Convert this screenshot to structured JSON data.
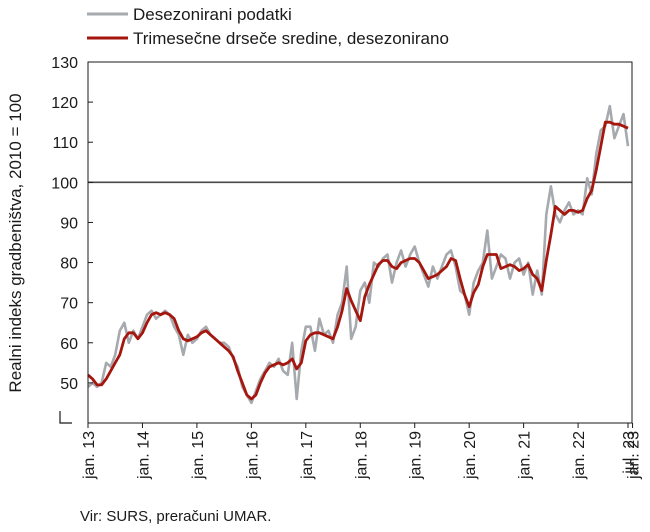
{
  "chart_data": {
    "type": "line",
    "ylabel": "Realni indeks gradbeništva, 2010 = 100",
    "ylim": [
      40,
      130
    ],
    "yticks": [
      50,
      60,
      70,
      80,
      90,
      100,
      110,
      120,
      130
    ],
    "reference_line": 100,
    "x_start": "2013-01",
    "x_end": "2023-07",
    "xticks": [
      "jan. 13",
      "jan. 14",
      "jan. 15",
      "jan. 16",
      "jan. 17",
      "jan. 18",
      "jan. 19",
      "jan. 20",
      "jan. 21",
      "jan. 22",
      "jan. 23",
      "jul. 23"
    ],
    "legend_position": "top-left",
    "series": [
      {
        "name": "Desezonirani podatki",
        "color": "#a6a9ad",
        "values": [
          49,
          50,
          49,
          50,
          55,
          54,
          57,
          63,
          65,
          60,
          63,
          61,
          64,
          67,
          68,
          66,
          67,
          68,
          67,
          64,
          62,
          57,
          62,
          60,
          61,
          63,
          64,
          62,
          61,
          60,
          60,
          59,
          56,
          54,
          49,
          47,
          45,
          48,
          51,
          53,
          55,
          54,
          56,
          53,
          52,
          60,
          46,
          58,
          64,
          64,
          58,
          66,
          62,
          63,
          60,
          67,
          70,
          79,
          61,
          64,
          73,
          75,
          70,
          80,
          79,
          81,
          82,
          75,
          80,
          83,
          79,
          82,
          84,
          80,
          77,
          74,
          79,
          76,
          79,
          82,
          83,
          79,
          73,
          72,
          67,
          75,
          78,
          80,
          88,
          76,
          79,
          82,
          81,
          76,
          80,
          81,
          77,
          80,
          72,
          78,
          72,
          92,
          99,
          92,
          90,
          93,
          95,
          92,
          93,
          92,
          101,
          97,
          107,
          113,
          114,
          119,
          111,
          114,
          117,
          109
        ]
      },
      {
        "name": "Trimesečne drseče sredine, desezonirano",
        "color": "#a5160e",
        "values": [
          52,
          51,
          49.5,
          49.5,
          51,
          53,
          55,
          57,
          61,
          62.5,
          62.5,
          61,
          62.5,
          65,
          67,
          67.5,
          67,
          67.5,
          67,
          66,
          63,
          61,
          60.5,
          61,
          61.5,
          62.5,
          63,
          62,
          61,
          60,
          59,
          58,
          56.5,
          53,
          50,
          47,
          46,
          47,
          50,
          52.5,
          54,
          54.5,
          55,
          54.5,
          55,
          56,
          53.5,
          55,
          60.5,
          62,
          62.5,
          62.5,
          62,
          61.5,
          61,
          64,
          68,
          73.5,
          70.5,
          68,
          65.5,
          71.5,
          74.5,
          77,
          79.5,
          80.5,
          80.5,
          79,
          78.5,
          80,
          80.5,
          81,
          81,
          80,
          78,
          76,
          76.5,
          77,
          78,
          79,
          81,
          80.5,
          76,
          72,
          69,
          72.5,
          74.5,
          79,
          82,
          82,
          82,
          78.5,
          79,
          79.5,
          79,
          78,
          78.5,
          79.5,
          77,
          76,
          73,
          80.5,
          87,
          94,
          93,
          92,
          93,
          93,
          92.5,
          93,
          96,
          98,
          103,
          109,
          115,
          115,
          114.5,
          114.5,
          114,
          113.5
        ]
      }
    ]
  },
  "legend": {
    "items": [
      {
        "label": "Desezonirani podatki",
        "color": "#a6a9ad"
      },
      {
        "label": "Trimesečne drseče sredine, desezonirano",
        "color": "#a5160e"
      }
    ]
  },
  "source": "Vir: SURS, preračuni UMAR."
}
